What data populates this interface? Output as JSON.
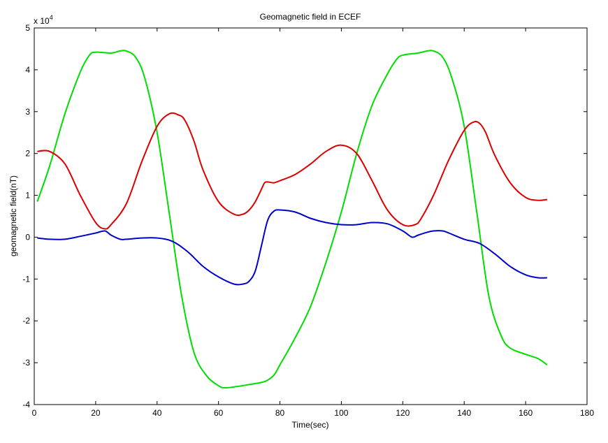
{
  "chart_data": {
    "type": "line",
    "title": "Geomagnetic field in ECEF",
    "xlabel": "Time(sec)",
    "ylabel": "geomagnetic field(nT)",
    "y_exponent_label": "x 10",
    "y_exponent_power": "4",
    "xlim": [
      0,
      180
    ],
    "ylim": [
      -4,
      5
    ],
    "x_ticks": [
      0,
      20,
      40,
      60,
      80,
      100,
      120,
      140,
      160,
      180
    ],
    "y_ticks": [
      -4,
      -3,
      -2,
      -1,
      0,
      1,
      2,
      3,
      4,
      5
    ],
    "y_scale_factor": 10000,
    "grid": false,
    "series": [
      {
        "color": "#00dd00",
        "x": [
          1,
          5,
          10,
          15,
          18,
          20,
          25,
          28,
          30,
          33,
          36,
          40,
          44,
          48,
          52,
          56,
          60,
          62,
          65,
          70,
          75,
          78,
          80,
          85,
          90,
          95,
          100,
          105,
          110,
          115,
          118,
          120,
          125,
          128,
          130,
          133,
          136,
          140,
          144,
          148,
          152,
          155,
          160,
          164,
          167
        ],
        "y": [
          0.85,
          1.7,
          2.95,
          3.95,
          4.35,
          4.42,
          4.4,
          4.45,
          4.45,
          4.3,
          3.8,
          2.5,
          0.55,
          -1.4,
          -2.75,
          -3.3,
          -3.55,
          -3.6,
          -3.58,
          -3.52,
          -3.45,
          -3.3,
          -3.05,
          -2.4,
          -1.65,
          -0.6,
          0.6,
          2.0,
          3.15,
          3.9,
          4.25,
          4.35,
          4.4,
          4.45,
          4.45,
          4.3,
          3.8,
          2.65,
          0.65,
          -1.4,
          -2.35,
          -2.65,
          -2.8,
          -2.9,
          -3.05
        ]
      },
      {
        "color": "#dd0000",
        "x": [
          1,
          5,
          10,
          15,
          20,
          23,
          25,
          30,
          35,
          40,
          44,
          47,
          49,
          52,
          55,
          60,
          65,
          68,
          70,
          72,
          74,
          75,
          76,
          78,
          80,
          85,
          90,
          95,
          100,
          105,
          110,
          115,
          120,
          124,
          126,
          130,
          135,
          140,
          143,
          145,
          147,
          150,
          155,
          160,
          164,
          167
        ],
        "y": [
          2.05,
          2.05,
          1.75,
          1.0,
          0.35,
          0.2,
          0.3,
          0.8,
          1.8,
          2.65,
          2.95,
          2.92,
          2.8,
          2.3,
          1.6,
          0.85,
          0.55,
          0.55,
          0.65,
          0.85,
          1.15,
          1.3,
          1.32,
          1.3,
          1.35,
          1.5,
          1.75,
          2.05,
          2.2,
          2.0,
          1.35,
          0.65,
          0.3,
          0.3,
          0.45,
          1.0,
          1.85,
          2.55,
          2.75,
          2.72,
          2.5,
          1.95,
          1.3,
          0.95,
          0.88,
          0.9
        ]
      },
      {
        "color": "#0000cc",
        "x": [
          1,
          5,
          10,
          15,
          20,
          23,
          25,
          28,
          30,
          35,
          40,
          45,
          50,
          55,
          60,
          65,
          68,
          70,
          72,
          74,
          76,
          78,
          80,
          85,
          90,
          95,
          100,
          105,
          110,
          115,
          120,
          123,
          125,
          128,
          130,
          133,
          135,
          140,
          145,
          150,
          155,
          160,
          164,
          167
        ],
        "y": [
          -0.02,
          -0.05,
          -0.05,
          0.02,
          0.1,
          0.15,
          0.05,
          -0.05,
          -0.05,
          -0.02,
          -0.02,
          -0.1,
          -0.35,
          -0.7,
          -0.95,
          -1.12,
          -1.12,
          -1.05,
          -0.8,
          -0.2,
          0.4,
          0.62,
          0.65,
          0.6,
          0.45,
          0.35,
          0.3,
          0.3,
          0.35,
          0.32,
          0.15,
          0.0,
          0.05,
          0.12,
          0.15,
          0.15,
          0.1,
          -0.05,
          -0.15,
          -0.4,
          -0.7,
          -0.9,
          -0.97,
          -0.97
        ]
      }
    ]
  }
}
